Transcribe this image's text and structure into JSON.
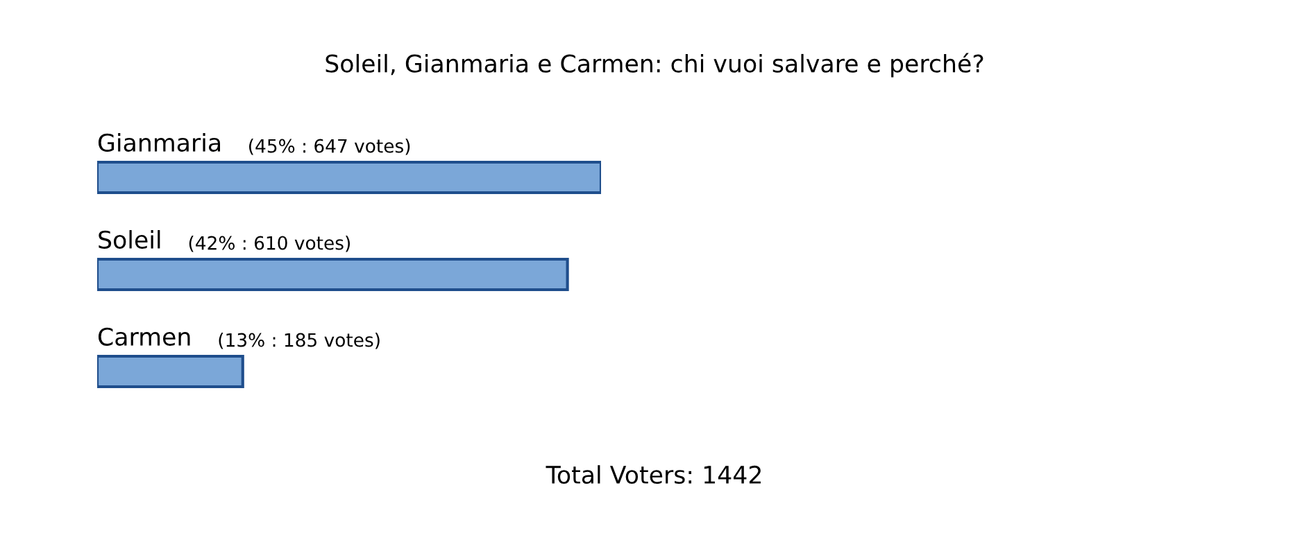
{
  "chart_data": {
    "type": "bar",
    "orientation": "horizontal",
    "title": "Soleil, Gianmaria e Carmen: chi vuoi salvare e perché?",
    "categories": [
      "Gianmaria",
      "Soleil",
      "Carmen"
    ],
    "values": [
      45,
      42,
      13
    ],
    "value_labels": [
      "(45% : 647 votes)",
      "(42% : 610 votes)",
      "(13% : 185 votes)"
    ],
    "color": "#7ba7d8",
    "annotations": [
      "Total Voters: 1442"
    ]
  }
}
